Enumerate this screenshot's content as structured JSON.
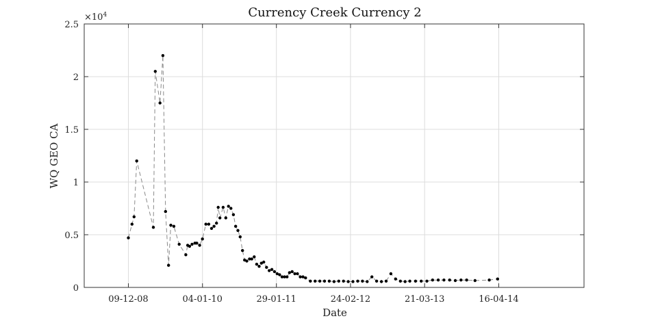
{
  "chart_data": {
    "type": "line",
    "title": "Currency Creek Currency 2",
    "xlabel": "Date",
    "ylabel": "WQ GEO CA",
    "y_multiplier_label": "×10",
    "y_multiplier_exponent": "4",
    "ylim": [
      0,
      25000
    ],
    "xlim": [
      "2008-04-20",
      "2015-07-10"
    ],
    "grid": true,
    "x_ticks": [
      {
        "date": "2008-12-09",
        "label": "09-12-08"
      },
      {
        "date": "2010-01-04",
        "label": "04-01-10"
      },
      {
        "date": "2011-01-29",
        "label": "29-01-11"
      },
      {
        "date": "2012-02-24",
        "label": "24-02-12"
      },
      {
        "date": "2013-03-21",
        "label": "21-03-13"
      },
      {
        "date": "2014-04-16",
        "label": "16-04-14"
      }
    ],
    "y_ticks": [
      {
        "value": 0,
        "label": "0"
      },
      {
        "value": 5000,
        "label": "0.5"
      },
      {
        "value": 10000,
        "label": "1"
      },
      {
        "value": 15000,
        "label": "1.5"
      },
      {
        "value": 20000,
        "label": "2"
      },
      {
        "value": 25000,
        "label": "2.5"
      }
    ],
    "series": [
      {
        "color": "#000000",
        "line_color": "#888888",
        "line_style": "dashed",
        "x": [
          "2008-12-09",
          "2008-12-28",
          "2009-01-08",
          "2009-01-22",
          "2009-04-20",
          "2009-04-30",
          "2009-05-25",
          "2009-06-09",
          "2009-06-23",
          "2009-07-09",
          "2009-07-21",
          "2009-08-06",
          "2009-09-03",
          "2009-10-08",
          "2009-10-18",
          "2009-10-28",
          "2009-11-10",
          "2009-11-25",
          "2009-12-05",
          "2009-12-20",
          "2010-01-04",
          "2010-01-22",
          "2010-02-06",
          "2010-02-21",
          "2010-03-06",
          "2010-03-19",
          "2010-03-28",
          "2010-04-06",
          "2010-04-23",
          "2010-05-07",
          "2010-05-21",
          "2010-06-03",
          "2010-06-16",
          "2010-06-28",
          "2010-07-10",
          "2010-07-22",
          "2010-08-03",
          "2010-08-14",
          "2010-08-26",
          "2010-09-09",
          "2010-09-21",
          "2010-10-04",
          "2010-10-17",
          "2010-10-30",
          "2010-11-11",
          "2010-11-23",
          "2010-12-08",
          "2010-12-22",
          "2011-01-05",
          "2011-01-19",
          "2011-02-02",
          "2011-02-15",
          "2011-02-28",
          "2011-03-13",
          "2011-03-26",
          "2011-04-08",
          "2011-04-22",
          "2011-05-06",
          "2011-05-20",
          "2011-06-04",
          "2011-06-18",
          "2011-07-02",
          "2011-07-27",
          "2011-08-21",
          "2011-09-15",
          "2011-10-10",
          "2011-11-04",
          "2011-11-29",
          "2011-12-24",
          "2012-01-18",
          "2012-02-12",
          "2012-03-08",
          "2012-04-02",
          "2012-04-27",
          "2012-05-22",
          "2012-06-16",
          "2012-07-11",
          "2012-08-05",
          "2012-08-30",
          "2012-09-24",
          "2012-10-19",
          "2012-11-13",
          "2012-12-08",
          "2013-01-02",
          "2013-02-01",
          "2013-03-03",
          "2013-04-02",
          "2013-05-02",
          "2013-06-01",
          "2013-07-01",
          "2013-07-31",
          "2013-08-30",
          "2013-09-29",
          "2013-10-29",
          "2013-12-12",
          "2014-02-25",
          "2014-04-10"
        ],
        "y": [
          4700,
          6000,
          6700,
          12000,
          5700,
          20500,
          17500,
          22000,
          7200,
          2100,
          5900,
          5800,
          4100,
          3100,
          4000,
          3900,
          4100,
          4200,
          4200,
          4000,
          4600,
          6000,
          6000,
          5600,
          5800,
          6100,
          7600,
          6600,
          7600,
          6600,
          7700,
          7500,
          6900,
          5800,
          5400,
          4800,
          3500,
          2600,
          2500,
          2700,
          2700,
          2900,
          2200,
          2000,
          2300,
          2400,
          1900,
          1600,
          1700,
          1500,
          1300,
          1200,
          1000,
          1000,
          1000,
          1400,
          1500,
          1300,
          1300,
          1000,
          1000,
          900,
          600,
          600,
          600,
          600,
          600,
          550,
          600,
          600,
          550,
          550,
          600,
          600,
          550,
          1000,
          600,
          550,
          600,
          1300,
          800,
          600,
          550,
          600,
          600,
          600,
          600,
          700,
          700,
          700,
          700,
          650,
          700,
          700,
          650,
          700,
          800
        ]
      }
    ]
  }
}
